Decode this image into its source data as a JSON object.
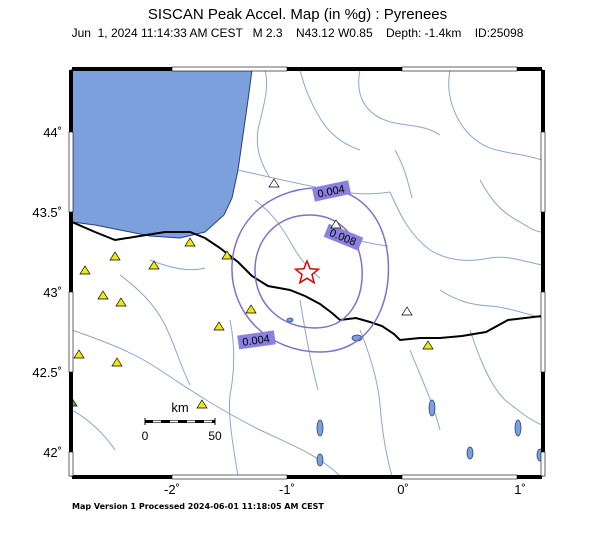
{
  "header": {
    "title": "SISCAN Peak Accel. Map (in %g) : Pyrenees",
    "subtitle": "Jun  1, 2024 11:14:33 AM CEST   M 2.3    N43.12 W0.85    Depth: -1.4km    ID:25098"
  },
  "footer": {
    "text": "Map Version 1 Processed 2024-06-01 11:18:05 AM CEST"
  },
  "axes": {
    "x_ticks": [
      "-2˚",
      "-1˚",
      "0˚",
      "1˚"
    ],
    "y_ticks": [
      "44˚",
      "43.5˚",
      "43˚",
      "42.5˚",
      "42˚"
    ]
  },
  "contours": [
    {
      "label": "0.004"
    },
    {
      "label": "0.008"
    },
    {
      "label": "0.004"
    }
  ],
  "scale_bar": {
    "unit": "km",
    "left_label": "0",
    "right_label": "50"
  },
  "colors": {
    "sea": "#7ba0dc",
    "rivers": "#8aa6d2",
    "contour": "#8070c8",
    "contour_label_bg": "#8a80e0",
    "station_yellow": "#f0e80a",
    "station_white": "#ffffff",
    "station_green": "#30c040",
    "epicenter": "#e00000",
    "border": "#000000"
  },
  "icons": {
    "epicenter": "star-icon",
    "station": "triangle-icon"
  }
}
